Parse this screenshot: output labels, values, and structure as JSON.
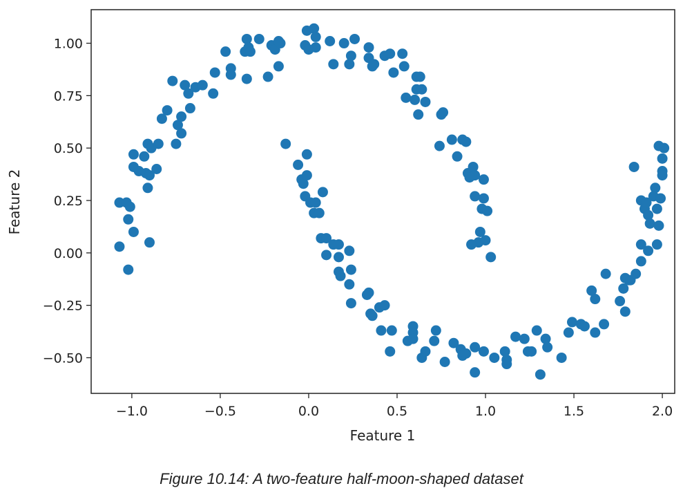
{
  "caption": "Figure 10.14: A two-feature half-moon-shaped dataset",
  "chart_data": {
    "type": "scatter",
    "xlabel": "Feature 1",
    "ylabel": "Feature 2",
    "xlim": [
      -1.23,
      2.07
    ],
    "ylim": [
      -0.67,
      1.16
    ],
    "xticks": [
      -1.0,
      -0.5,
      0.0,
      0.5,
      1.0,
      1.5,
      2.0
    ],
    "xtick_labels": [
      "−1.0",
      "−0.5",
      "0.0",
      "0.5",
      "1.0",
      "1.5",
      "2.0"
    ],
    "yticks": [
      1.0,
      0.75,
      0.5,
      0.25,
      0.0,
      -0.25,
      -0.5
    ],
    "ytick_labels": [
      "1.00",
      "0.75",
      "0.50",
      "0.25",
      "0.00",
      "−0.25",
      "−0.50"
    ],
    "color": "#1f77b4",
    "series": [
      {
        "points": [
          [
            -1.07,
            0.24
          ],
          [
            -1.03,
            0.24
          ],
          [
            -1.01,
            0.22
          ],
          [
            -1.02,
            0.16
          ],
          [
            -0.99,
            0.1
          ],
          [
            -1.07,
            0.03
          ],
          [
            -1.02,
            -0.08
          ],
          [
            -0.9,
            0.05
          ],
          [
            -0.99,
            0.47
          ],
          [
            -0.99,
            0.41
          ],
          [
            -0.96,
            0.39
          ],
          [
            -0.93,
            0.46
          ],
          [
            -0.91,
            0.52
          ],
          [
            -0.89,
            0.5
          ],
          [
            -0.85,
            0.52
          ],
          [
            -0.86,
            0.4
          ],
          [
            -0.92,
            0.38
          ],
          [
            -0.9,
            0.37
          ],
          [
            -0.91,
            0.31
          ],
          [
            -0.83,
            0.64
          ],
          [
            -0.8,
            0.68
          ],
          [
            -0.77,
            0.82
          ],
          [
            -0.75,
            0.52
          ],
          [
            -0.74,
            0.61
          ],
          [
            -0.72,
            0.65
          ],
          [
            -0.72,
            0.57
          ],
          [
            -0.7,
            0.8
          ],
          [
            -0.68,
            0.76
          ],
          [
            -0.67,
            0.69
          ],
          [
            -0.64,
            0.79
          ],
          [
            -0.6,
            0.8
          ],
          [
            -0.54,
            0.76
          ],
          [
            -0.53,
            0.86
          ],
          [
            -0.47,
            0.96
          ],
          [
            -0.44,
            0.88
          ],
          [
            -0.44,
            0.85
          ],
          [
            -0.36,
            0.96
          ],
          [
            -0.35,
            0.83
          ],
          [
            -0.35,
            1.02
          ],
          [
            -0.34,
            0.98
          ],
          [
            -0.33,
            0.96
          ],
          [
            -0.28,
            1.02
          ],
          [
            -0.23,
            0.84
          ],
          [
            -0.21,
            0.99
          ],
          [
            -0.19,
            0.97
          ],
          [
            -0.17,
            0.89
          ],
          [
            -0.16,
            1.0
          ],
          [
            -0.17,
            1.01
          ],
          [
            -0.02,
            0.99
          ],
          [
            -0.01,
            1.06
          ],
          [
            0.0,
            0.97
          ],
          [
            0.03,
            1.07
          ],
          [
            0.04,
            1.03
          ],
          [
            0.04,
            0.98
          ],
          [
            0.12,
            1.01
          ],
          [
            0.14,
            0.9
          ],
          [
            0.2,
            1.0
          ],
          [
            0.23,
            0.9
          ],
          [
            0.24,
            0.94
          ],
          [
            0.26,
            1.02
          ],
          [
            0.34,
            0.98
          ],
          [
            0.34,
            0.93
          ],
          [
            0.36,
            0.89
          ],
          [
            0.37,
            0.9
          ],
          [
            0.43,
            0.94
          ],
          [
            0.46,
            0.95
          ],
          [
            0.48,
            0.86
          ],
          [
            0.53,
            0.95
          ],
          [
            0.54,
            0.89
          ],
          [
            0.55,
            0.74
          ],
          [
            0.6,
            0.73
          ],
          [
            0.61,
            0.84
          ],
          [
            0.61,
            0.78
          ],
          [
            0.62,
            0.66
          ],
          [
            0.63,
            0.84
          ],
          [
            0.64,
            0.78
          ],
          [
            0.66,
            0.72
          ],
          [
            0.75,
            0.66
          ],
          [
            0.76,
            0.67
          ],
          [
            0.74,
            0.51
          ],
          [
            0.81,
            0.54
          ],
          [
            0.84,
            0.46
          ],
          [
            0.87,
            0.54
          ],
          [
            0.89,
            0.53
          ],
          [
            0.9,
            0.38
          ],
          [
            0.91,
            0.36
          ],
          [
            0.93,
            0.41
          ],
          [
            0.94,
            0.37
          ],
          [
            0.94,
            0.27
          ],
          [
            0.99,
            0.35
          ],
          [
            0.98,
            0.21
          ],
          [
            0.99,
            0.26
          ],
          [
            0.97,
            0.1
          ],
          [
            0.96,
            0.05
          ],
          [
            0.92,
            0.04
          ],
          [
            1.01,
            0.2
          ],
          [
            1.0,
            0.06
          ],
          [
            1.03,
            -0.02
          ]
        ]
      },
      {
        "points": [
          [
            -0.13,
            0.52
          ],
          [
            -0.06,
            0.42
          ],
          [
            -0.04,
            0.35
          ],
          [
            -0.03,
            0.33
          ],
          [
            -0.01,
            0.37
          ],
          [
            -0.01,
            0.47
          ],
          [
            -0.02,
            0.27
          ],
          [
            0.01,
            0.24
          ],
          [
            0.04,
            0.24
          ],
          [
            0.03,
            0.19
          ],
          [
            0.06,
            0.19
          ],
          [
            0.08,
            0.29
          ],
          [
            0.07,
            0.07
          ],
          [
            0.1,
            0.07
          ],
          [
            0.1,
            -0.01
          ],
          [
            0.14,
            0.04
          ],
          [
            0.17,
            0.04
          ],
          [
            0.17,
            -0.02
          ],
          [
            0.17,
            -0.09
          ],
          [
            0.18,
            -0.11
          ],
          [
            0.23,
            0.01
          ],
          [
            0.24,
            -0.08
          ],
          [
            0.23,
            -0.15
          ],
          [
            0.24,
            -0.24
          ],
          [
            0.33,
            -0.2
          ],
          [
            0.34,
            -0.19
          ],
          [
            0.35,
            -0.29
          ],
          [
            0.36,
            -0.3
          ],
          [
            0.4,
            -0.26
          ],
          [
            0.43,
            -0.25
          ],
          [
            0.41,
            -0.37
          ],
          [
            0.47,
            -0.37
          ],
          [
            0.46,
            -0.47
          ],
          [
            0.56,
            -0.42
          ],
          [
            0.59,
            -0.38
          ],
          [
            0.59,
            -0.35
          ],
          [
            0.59,
            -0.41
          ],
          [
            0.64,
            -0.5
          ],
          [
            0.66,
            -0.47
          ],
          [
            0.71,
            -0.42
          ],
          [
            0.72,
            -0.37
          ],
          [
            0.77,
            -0.52
          ],
          [
            0.82,
            -0.43
          ],
          [
            0.86,
            -0.46
          ],
          [
            0.87,
            -0.49
          ],
          [
            0.89,
            -0.48
          ],
          [
            0.94,
            -0.57
          ],
          [
            0.94,
            -0.45
          ],
          [
            0.99,
            -0.47
          ],
          [
            1.05,
            -0.5
          ],
          [
            1.11,
            -0.47
          ],
          [
            1.12,
            -0.51
          ],
          [
            1.12,
            -0.53
          ],
          [
            1.17,
            -0.4
          ],
          [
            1.22,
            -0.41
          ],
          [
            1.24,
            -0.47
          ],
          [
            1.26,
            -0.47
          ],
          [
            1.29,
            -0.37
          ],
          [
            1.31,
            -0.58
          ],
          [
            1.34,
            -0.41
          ],
          [
            1.35,
            -0.45
          ],
          [
            1.43,
            -0.5
          ],
          [
            1.47,
            -0.38
          ],
          [
            1.49,
            -0.33
          ],
          [
            1.54,
            -0.34
          ],
          [
            1.56,
            -0.35
          ],
          [
            1.6,
            -0.18
          ],
          [
            1.62,
            -0.22
          ],
          [
            1.62,
            -0.38
          ],
          [
            1.67,
            -0.34
          ],
          [
            1.68,
            -0.1
          ],
          [
            1.76,
            -0.23
          ],
          [
            1.78,
            -0.17
          ],
          [
            1.79,
            -0.12
          ],
          [
            1.79,
            -0.28
          ],
          [
            1.81,
            -0.13
          ],
          [
            1.82,
            -0.13
          ],
          [
            1.85,
            -0.1
          ],
          [
            1.88,
            -0.04
          ],
          [
            1.88,
            0.04
          ],
          [
            1.84,
            0.41
          ],
          [
            1.88,
            0.25
          ],
          [
            1.9,
            0.21
          ],
          [
            1.91,
            0.24
          ],
          [
            1.92,
            0.18
          ],
          [
            1.93,
            0.14
          ],
          [
            1.92,
            0.01
          ],
          [
            1.95,
            0.27
          ],
          [
            1.96,
            0.31
          ],
          [
            1.97,
            0.21
          ],
          [
            1.98,
            0.13
          ],
          [
            1.97,
            0.04
          ],
          [
            1.99,
            0.26
          ],
          [
            2.0,
            0.39
          ],
          [
            2.0,
            0.37
          ],
          [
            2.0,
            0.45
          ],
          [
            1.98,
            0.51
          ],
          [
            2.01,
            0.5
          ]
        ]
      }
    ]
  }
}
